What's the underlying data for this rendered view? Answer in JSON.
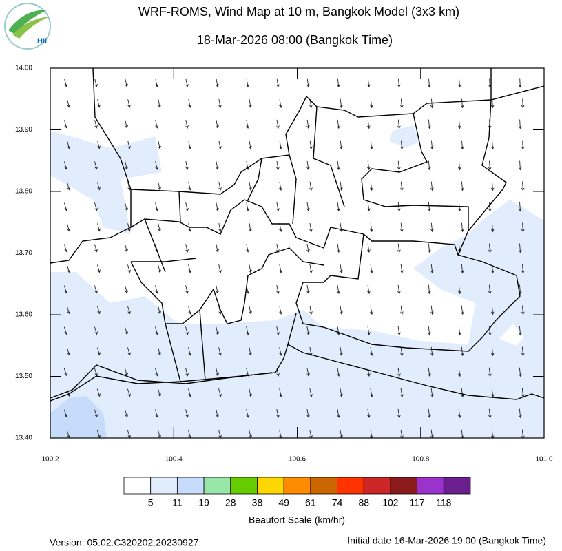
{
  "header": {
    "title": "WRF-ROMS, Wind Map at 10 m, Bangkok Model (3x3 km)",
    "subtitle": "18-Mar-2026 08:00 (Bangkok Time)",
    "logo_text": "HII"
  },
  "map": {
    "xlim": [
      100.2,
      101.0
    ],
    "ylim": [
      13.4,
      14.0
    ],
    "xticks": [
      100.2,
      100.4,
      100.6,
      100.8,
      {
        "value": 101,
        "label": "101.0"
      }
    ],
    "yticks": [
      {
        "value": 13.4,
        "label": "13.40"
      },
      {
        "value": 13.5,
        "label": "13.50"
      },
      {
        "value": 13.6,
        "label": "13.60"
      },
      {
        "value": 13.7,
        "label": "13.70"
      },
      {
        "value": 13.8,
        "label": "13.80"
      },
      {
        "value": 13.9,
        "label": "13.90"
      },
      {
        "value": 14,
        "label": "14.00"
      }
    ]
  },
  "legend": {
    "title": "Beaufort Scale (km/hr)",
    "colors": [
      "#ffffff",
      "#e1edfc",
      "#c6dcfa",
      "#98e6a8",
      "#66cc00",
      "#ffd700",
      "#ff8c00",
      "#cc6600",
      "#ff3300",
      "#cc2626",
      "#8b1a1a",
      "#9933cc",
      "#6a1f8f"
    ],
    "bounds": [
      5,
      11,
      19,
      28,
      38,
      49,
      61,
      74,
      88,
      102,
      117,
      118
    ]
  },
  "footer": {
    "version": "Version: 05.02.C320202.20230927",
    "initial_date": "Initial date 16-Mar-2026 19:00 (Bangkok Time)"
  }
}
